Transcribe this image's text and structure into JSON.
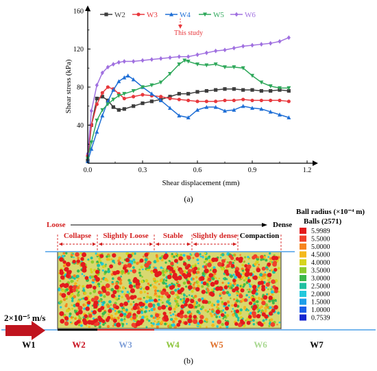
{
  "chart_data": {
    "type": "line",
    "xlabel": "Shear displacement (mm)",
    "ylabel": "Shear stress (kPa)",
    "xlim": [
      0,
      1.2
    ],
    "ylim": [
      0,
      160
    ],
    "xticks": [
      "0.0",
      "0.3",
      "0.6",
      "0.9",
      "1.2"
    ],
    "yticks": [
      "40",
      "80",
      "120",
      "160"
    ],
    "legend_position": "top",
    "annotation": "This study",
    "caption": "(a)",
    "series": [
      {
        "name": "W2",
        "color": "#3c3c3c",
        "marker": "square",
        "x": [
          0.0,
          0.02,
          0.05,
          0.08,
          0.11,
          0.14,
          0.17,
          0.2,
          0.25,
          0.3,
          0.35,
          0.4,
          0.45,
          0.5,
          0.55,
          0.6,
          0.65,
          0.7,
          0.75,
          0.8,
          0.85,
          0.9,
          0.95,
          1.0,
          1.05,
          1.1
        ],
        "y": [
          3,
          40,
          68,
          70,
          66,
          59,
          56,
          57,
          60,
          63,
          65,
          67,
          70,
          73,
          73,
          75,
          76,
          77,
          78,
          78,
          77,
          77,
          76,
          76,
          77,
          76
        ]
      },
      {
        "name": "W3",
        "color": "#e8383d",
        "marker": "circle",
        "x": [
          0.0,
          0.02,
          0.05,
          0.08,
          0.11,
          0.14,
          0.17,
          0.2,
          0.25,
          0.3,
          0.35,
          0.4,
          0.45,
          0.5,
          0.55,
          0.6,
          0.65,
          0.7,
          0.75,
          0.8,
          0.85,
          0.9,
          0.95,
          1.0,
          1.05,
          1.1
        ],
        "y": [
          8,
          40,
          62,
          74,
          80,
          78,
          73,
          68,
          70,
          72,
          71,
          70,
          68,
          67,
          66,
          65,
          65,
          65,
          66,
          66,
          67,
          66,
          66,
          66,
          66,
          65
        ]
      },
      {
        "name": "W4",
        "color": "#1f6fd6",
        "marker": "triangle-up",
        "x": [
          0.0,
          0.02,
          0.05,
          0.08,
          0.11,
          0.14,
          0.17,
          0.2,
          0.22,
          0.25,
          0.3,
          0.35,
          0.4,
          0.45,
          0.5,
          0.55,
          0.6,
          0.65,
          0.7,
          0.75,
          0.8,
          0.85,
          0.9,
          0.95,
          1.0,
          1.05,
          1.1
        ],
        "y": [
          2,
          15,
          33,
          50,
          65,
          77,
          86,
          90,
          92,
          88,
          80,
          73,
          66,
          58,
          50,
          48,
          56,
          59,
          59,
          55,
          56,
          60,
          58,
          57,
          54,
          51,
          48
        ]
      },
      {
        "name": "W5",
        "color": "#2ea85a",
        "marker": "triangle-down",
        "x": [
          0.0,
          0.02,
          0.05,
          0.08,
          0.11,
          0.14,
          0.17,
          0.2,
          0.25,
          0.3,
          0.35,
          0.4,
          0.45,
          0.5,
          0.53,
          0.55,
          0.6,
          0.65,
          0.7,
          0.75,
          0.8,
          0.85,
          0.9,
          0.95,
          1.0,
          1.05,
          1.1
        ],
        "y": [
          5,
          22,
          45,
          56,
          62,
          67,
          71,
          73,
          76,
          80,
          82,
          85,
          94,
          104,
          108,
          107,
          104,
          103,
          104,
          101,
          101,
          100,
          92,
          85,
          81,
          79,
          79
        ]
      },
      {
        "name": "W6",
        "color": "#a070e0",
        "marker": "diamond",
        "x": [
          0.0,
          0.02,
          0.05,
          0.08,
          0.11,
          0.14,
          0.17,
          0.2,
          0.25,
          0.3,
          0.35,
          0.4,
          0.45,
          0.5,
          0.55,
          0.6,
          0.65,
          0.7,
          0.75,
          0.8,
          0.85,
          0.9,
          0.95,
          1.0,
          1.05,
          1.1
        ],
        "y": [
          10,
          55,
          82,
          95,
          101,
          104,
          106,
          107,
          107,
          108,
          109,
          110,
          111,
          112,
          112,
          114,
          116,
          118,
          119,
          121,
          123,
          124,
          125,
          126,
          128,
          132
        ]
      }
    ]
  },
  "figure_b": {
    "caption": "(b)",
    "scale_loose": "Loose",
    "scale_dense": "Dense",
    "zones": [
      {
        "label": "Collapse",
        "color": "#d42020"
      },
      {
        "label": "Slightly Loose",
        "color": "#d42020"
      },
      {
        "label": "Stable",
        "color": "#d42020"
      },
      {
        "label": "Slightly dense",
        "color": "#d42020"
      },
      {
        "label": "Compaction",
        "color": "#000000"
      }
    ],
    "velocity": "2×10⁻⁵ m/s",
    "walls": [
      {
        "label": "W1",
        "color": "#000000"
      },
      {
        "label": "W2",
        "color": "#c8101e"
      },
      {
        "label": "W3",
        "color": "#7f9fd8"
      },
      {
        "label": "W4",
        "color": "#8cc43a"
      },
      {
        "label": "W5",
        "color": "#e0702a"
      },
      {
        "label": "W6",
        "color": "#a8d890"
      },
      {
        "label": "W7",
        "color": "#000000"
      }
    ],
    "colorbar": {
      "title": "Ball radius  (×10⁻⁴ m)",
      "subtitle": "Balls (2571)",
      "entries": [
        {
          "value": "5.9989",
          "color": "#e31a1c"
        },
        {
          "value": "5.5000",
          "color": "#f0402a"
        },
        {
          "value": "5.0000",
          "color": "#f7841e"
        },
        {
          "value": "4.5000",
          "color": "#f4b81c"
        },
        {
          "value": "4.0000",
          "color": "#d6d41e"
        },
        {
          "value": "3.5000",
          "color": "#8dcc2e"
        },
        {
          "value": "3.0000",
          "color": "#3cb84a"
        },
        {
          "value": "2.5000",
          "color": "#1fc0a0"
        },
        {
          "value": "2.0000",
          "color": "#22c8dc"
        },
        {
          "value": "1.5000",
          "color": "#1e9ee8"
        },
        {
          "value": "1.0000",
          "color": "#1a5ee8"
        },
        {
          "value": "0.7539",
          "color": "#1426d0"
        }
      ]
    }
  }
}
